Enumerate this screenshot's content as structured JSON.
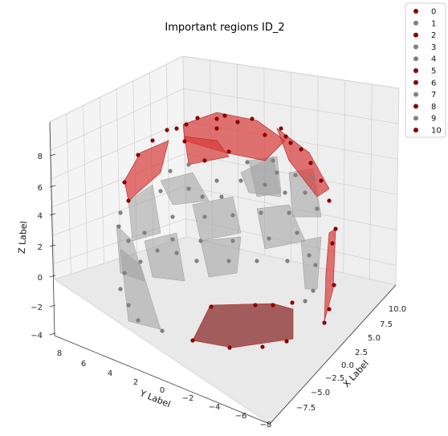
{
  "chart_data": {
    "type": "scatter",
    "subtype": "3d-scatter-with-filled-regions",
    "title": "Important regions ID_2",
    "xlabel": "X Label",
    "ylabel": "Y Label",
    "zlabel": "Z Label",
    "x_ticks": [
      "10.0",
      "7.5",
      "5.0",
      "2.5",
      "0.0",
      "−2.5",
      "−5.0",
      "−7.5"
    ],
    "y_ticks": [
      "8",
      "6",
      "4",
      "2",
      "0",
      "−2",
      "−4",
      "−6",
      "−8"
    ],
    "z_ticks": [
      "8",
      "6",
      "4",
      "2",
      "0",
      "−2",
      "−4"
    ],
    "grid": true,
    "legend_position": "top-right",
    "legend": [
      {
        "label": "0",
        "color": "#8b0000"
      },
      {
        "label": "1",
        "color": "#808080"
      },
      {
        "label": "2",
        "color": "#8b0000"
      },
      {
        "label": "3",
        "color": "#808080"
      },
      {
        "label": "4",
        "color": "#808080"
      },
      {
        "label": "5",
        "color": "#8b0000"
      },
      {
        "label": "6",
        "color": "#8b0000"
      },
      {
        "label": "7",
        "color": "#808080"
      },
      {
        "label": "8",
        "color": "#8b0000"
      },
      {
        "label": "9",
        "color": "#808080"
      },
      {
        "label": "10",
        "color": "#8b0000"
      }
    ],
    "colors": {
      "important": "#8b0000",
      "other": "#808080",
      "region_red": "#d93a3a",
      "region_gray": "#a0a0a0"
    }
  }
}
